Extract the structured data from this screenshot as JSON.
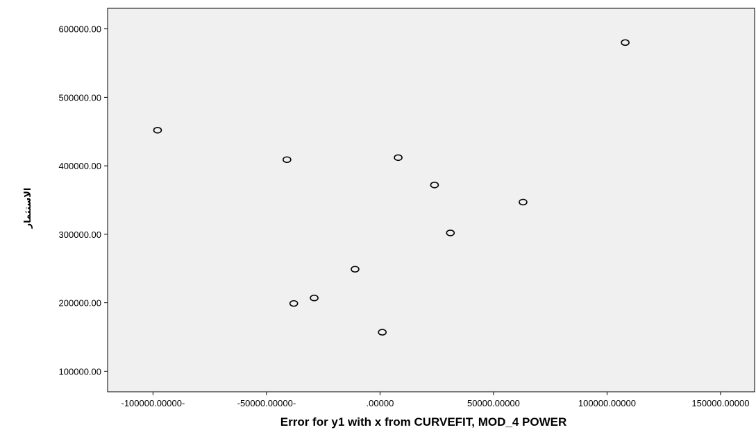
{
  "chart_data": {
    "type": "scatter",
    "xlabel": "Error for y1 with x from CURVEFIT, MOD_4 POWER",
    "ylabel": "الاستثمار",
    "xlim": [
      -120000,
      165000
    ],
    "ylim": [
      70000,
      630000
    ],
    "x_ticks": [
      -100000,
      -50000,
      0,
      50000,
      100000,
      150000
    ],
    "x_tick_labels": [
      "-100000.00000-",
      "-50000.00000-",
      ".00000",
      "50000.00000",
      "100000.00000",
      "150000.00000"
    ],
    "y_ticks": [
      100000,
      200000,
      300000,
      400000,
      500000,
      600000
    ],
    "y_tick_labels": [
      "100000.00",
      "200000.00",
      "300000.00",
      "400000.00",
      "500000.00",
      "600000.00"
    ],
    "grid": false,
    "background_color": "#f0f0f0",
    "marker": "open-circle",
    "points": [
      {
        "x": -98000,
        "y": 452000
      },
      {
        "x": -41000,
        "y": 409000
      },
      {
        "x": -38000,
        "y": 199000
      },
      {
        "x": -29000,
        "y": 207000
      },
      {
        "x": -11000,
        "y": 249000
      },
      {
        "x": 1000,
        "y": 157000
      },
      {
        "x": 8000,
        "y": 412000
      },
      {
        "x": 24000,
        "y": 372000
      },
      {
        "x": 31000,
        "y": 302000
      },
      {
        "x": 63000,
        "y": 347000
      },
      {
        "x": 108000,
        "y": 580000
      }
    ]
  }
}
